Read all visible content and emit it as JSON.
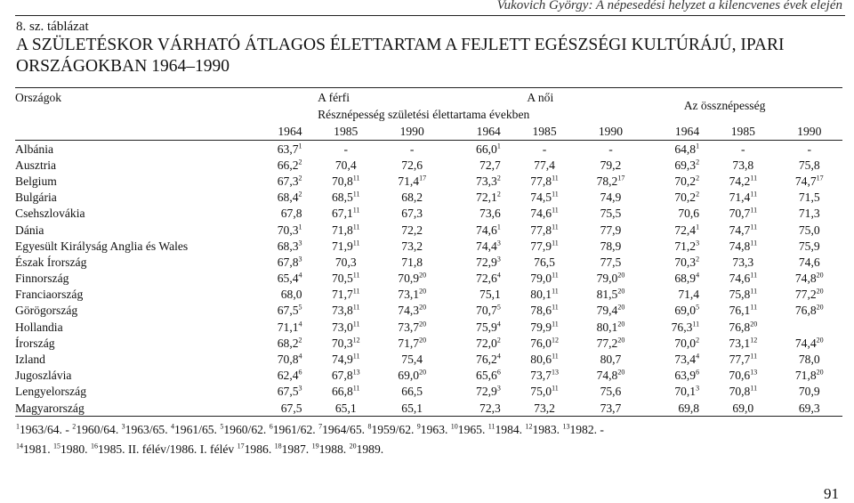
{
  "header_text": "Vukovich György: A népesedési helyzet a kilencvenes évek elején",
  "table_label": "8. sz. táblázat",
  "title": "A SZÜLETÉSKOR VÁRHATÓ ÁTLAGOS ÉLETTARTAM A FEJLETT EGÉSZSÉGI KULTÚRÁJÚ, IPARI ORSZÁGOKBAN 1964–1990",
  "col_countries": "Országok",
  "group_male": "A férfi",
  "group_female": "A női",
  "group_total": "Az össznépesség",
  "subheader": "Résznépesség születési élettartama években",
  "years": [
    "1964",
    "1985",
    "1990",
    "1964",
    "1985",
    "1990",
    "1964",
    "1985",
    "1990"
  ],
  "rows": [
    {
      "country": "Albánia",
      "cells": [
        [
          "63,7",
          "1"
        ],
        [
          "-",
          ""
        ],
        [
          "-",
          ""
        ],
        [
          "66,0",
          "1"
        ],
        [
          "-",
          ""
        ],
        [
          "-",
          ""
        ],
        [
          "64,8",
          "1"
        ],
        [
          "-",
          ""
        ],
        [
          "-",
          ""
        ]
      ]
    },
    {
      "country": "Ausztria",
      "cells": [
        [
          "66,2",
          "2"
        ],
        [
          "70,4",
          ""
        ],
        [
          "72,6",
          ""
        ],
        [
          "72,7",
          ""
        ],
        [
          "77,4",
          ""
        ],
        [
          "79,2",
          ""
        ],
        [
          "69,3",
          "2"
        ],
        [
          "73,8",
          ""
        ],
        [
          "75,8",
          ""
        ]
      ]
    },
    {
      "country": "Belgium",
      "cells": [
        [
          "67,3",
          "2"
        ],
        [
          "70,8",
          "11"
        ],
        [
          "71,4",
          "17"
        ],
        [
          "73,3",
          "2"
        ],
        [
          "77,8",
          "11"
        ],
        [
          "78,2",
          "17"
        ],
        [
          "70,2",
          "2"
        ],
        [
          "74,2",
          "11"
        ],
        [
          "74,7",
          "17"
        ]
      ]
    },
    {
      "country": "Bulgária",
      "cells": [
        [
          "68,4",
          "2"
        ],
        [
          "68,5",
          "11"
        ],
        [
          "68,2",
          ""
        ],
        [
          "72,1",
          "2"
        ],
        [
          "74,5",
          "11"
        ],
        [
          "74,9",
          ""
        ],
        [
          "70,2",
          "2"
        ],
        [
          "71,4",
          "11"
        ],
        [
          "71,5",
          ""
        ]
      ]
    },
    {
      "country": "Csehszlovákia",
      "cells": [
        [
          "67,8",
          ""
        ],
        [
          "67,1",
          "11"
        ],
        [
          "67,3",
          ""
        ],
        [
          "73,6",
          ""
        ],
        [
          "74,6",
          "11"
        ],
        [
          "75,5",
          ""
        ],
        [
          "70,6",
          ""
        ],
        [
          "70,7",
          "11"
        ],
        [
          "71,3",
          ""
        ]
      ]
    },
    {
      "country": "Dánia",
      "cells": [
        [
          "70,3",
          "1"
        ],
        [
          "71,8",
          "11"
        ],
        [
          "72,2",
          ""
        ],
        [
          "74,6",
          "1"
        ],
        [
          "77,8",
          "11"
        ],
        [
          "77,9",
          ""
        ],
        [
          "72,4",
          "1"
        ],
        [
          "74,7",
          "11"
        ],
        [
          "75,0",
          ""
        ]
      ]
    },
    {
      "country": "Egyesült Királyság Anglia és Wales",
      "cells": [
        [
          "68,3",
          "3"
        ],
        [
          "71,9",
          "11"
        ],
        [
          "73,2",
          ""
        ],
        [
          "74,4",
          "3"
        ],
        [
          "77,9",
          "11"
        ],
        [
          "78,9",
          ""
        ],
        [
          "71,2",
          "3"
        ],
        [
          "74,8",
          "11"
        ],
        [
          "75,9",
          ""
        ]
      ]
    },
    {
      "country": "Észak Írország",
      "cells": [
        [
          "67,8",
          "3"
        ],
        [
          "70,3",
          ""
        ],
        [
          "71,8",
          ""
        ],
        [
          "72,9",
          "3"
        ],
        [
          "76,5",
          ""
        ],
        [
          "77,5",
          ""
        ],
        [
          "70,3",
          "2"
        ],
        [
          "73,3",
          ""
        ],
        [
          "74,6",
          ""
        ]
      ]
    },
    {
      "country": "Finnország",
      "cells": [
        [
          "65,4",
          "4"
        ],
        [
          "70,5",
          "11"
        ],
        [
          "70,9",
          "20"
        ],
        [
          "72,6",
          "4"
        ],
        [
          "79,0",
          "11"
        ],
        [
          "79,0",
          "20"
        ],
        [
          "68,9",
          "4"
        ],
        [
          "74,6",
          "11"
        ],
        [
          "74,8",
          "20"
        ]
      ]
    },
    {
      "country": "Franciaország",
      "cells": [
        [
          "68,0",
          ""
        ],
        [
          "71,7",
          "11"
        ],
        [
          "73,1",
          "20"
        ],
        [
          "75,1",
          ""
        ],
        [
          "80,1",
          "11"
        ],
        [
          "81,5",
          "20"
        ],
        [
          "71,4",
          ""
        ],
        [
          "75,8",
          "11"
        ],
        [
          "77,2",
          "20"
        ]
      ]
    },
    {
      "country": "Görögország",
      "cells": [
        [
          "67,5",
          "5"
        ],
        [
          "73,8",
          "11"
        ],
        [
          "74,3",
          "20"
        ],
        [
          "70,7",
          "5"
        ],
        [
          "78,6",
          "11"
        ],
        [
          "79,4",
          "20"
        ],
        [
          "69,0",
          "5"
        ],
        [
          "76,1",
          "11"
        ],
        [
          "76,8",
          "20"
        ]
      ]
    },
    {
      "country": "Hollandia",
      "cells": [
        [
          "71,1",
          "4"
        ],
        [
          "73,0",
          "11"
        ],
        [
          "73,7",
          "20"
        ],
        [
          "75,9",
          "4"
        ],
        [
          "79,9",
          "11"
        ],
        [
          "80,1",
          "20"
        ],
        [
          "76,3",
          "11"
        ],
        [
          "76,8",
          "20"
        ],
        [
          "",
          ""
        ]
      ]
    },
    {
      "country": "Írország",
      "cells": [
        [
          "68,2",
          "2"
        ],
        [
          "70,3",
          "12"
        ],
        [
          "71,7",
          "20"
        ],
        [
          "72,0",
          "2"
        ],
        [
          "76,0",
          "12"
        ],
        [
          "77,2",
          "20"
        ],
        [
          "70,0",
          "2"
        ],
        [
          "73,1",
          "12"
        ],
        [
          "74,4",
          "20"
        ]
      ]
    },
    {
      "country": "Izland",
      "cells": [
        [
          "70,8",
          "4"
        ],
        [
          "74,9",
          "11"
        ],
        [
          "75,4",
          ""
        ],
        [
          "76,2",
          "4"
        ],
        [
          "80,6",
          "11"
        ],
        [
          "80,7",
          ""
        ],
        [
          "73,4",
          "4"
        ],
        [
          "77,7",
          "11"
        ],
        [
          "78,0",
          ""
        ]
      ]
    },
    {
      "country": "Jugoszlávia",
      "cells": [
        [
          "62,4",
          "6"
        ],
        [
          "67,8",
          "13"
        ],
        [
          "69,0",
          "20"
        ],
        [
          "65,6",
          "6"
        ],
        [
          "73,7",
          "13"
        ],
        [
          "74,8",
          "20"
        ],
        [
          "63,9",
          "6"
        ],
        [
          "70,6",
          "13"
        ],
        [
          "71,8",
          "20"
        ]
      ]
    },
    {
      "country": "Lengyelország",
      "cells": [
        [
          "67,5",
          "3"
        ],
        [
          "66,8",
          "11"
        ],
        [
          "66,5",
          ""
        ],
        [
          "72,9",
          "3"
        ],
        [
          "75,0",
          "11"
        ],
        [
          "75,6",
          ""
        ],
        [
          "70,1",
          "3"
        ],
        [
          "70,8",
          "11"
        ],
        [
          "70,9",
          ""
        ]
      ]
    },
    {
      "country": "Magyarország",
      "cells": [
        [
          "67,5",
          ""
        ],
        [
          "65,1",
          ""
        ],
        [
          "65,1",
          ""
        ],
        [
          "72,3",
          ""
        ],
        [
          "73,2",
          ""
        ],
        [
          "73,7",
          ""
        ],
        [
          "69,8",
          ""
        ],
        [
          "69,0",
          ""
        ],
        [
          "69,3",
          ""
        ]
      ]
    }
  ],
  "footnotes": [
    [
      [
        "1",
        ""
      ],
      [
        "",
        "1963/64. - "
      ],
      [
        "2",
        ""
      ],
      [
        "",
        "1960/64. "
      ],
      [
        "3",
        ""
      ],
      [
        "",
        "1963/65. "
      ],
      [
        "4",
        ""
      ],
      [
        "",
        "1961/65. "
      ],
      [
        "5",
        ""
      ],
      [
        "",
        "1960/62. "
      ],
      [
        "6",
        ""
      ],
      [
        "",
        "1961/62. "
      ],
      [
        "7",
        ""
      ],
      [
        "",
        "1964/65. "
      ],
      [
        "8",
        ""
      ],
      [
        "",
        "1959/62. "
      ],
      [
        "9",
        ""
      ],
      [
        "",
        "1963. "
      ],
      [
        "10",
        ""
      ],
      [
        "",
        "1965. "
      ],
      [
        "11",
        ""
      ],
      [
        "",
        "1984. "
      ],
      [
        "12",
        ""
      ],
      [
        "",
        "1983. "
      ],
      [
        "13",
        ""
      ],
      [
        "",
        "1982. -"
      ]
    ],
    [
      [
        "14",
        ""
      ],
      [
        "",
        "1981. "
      ],
      [
        "15",
        ""
      ],
      [
        "",
        "1980. "
      ],
      [
        "16",
        ""
      ],
      [
        "",
        "1985. II. félév/1986. I. félév "
      ],
      [
        "17",
        ""
      ],
      [
        "",
        "1986. "
      ],
      [
        "18",
        ""
      ],
      [
        "",
        "1987. "
      ],
      [
        "19",
        ""
      ],
      [
        "",
        "1988. "
      ],
      [
        "20",
        ""
      ],
      [
        "",
        "1989."
      ]
    ]
  ],
  "page_number": "91"
}
